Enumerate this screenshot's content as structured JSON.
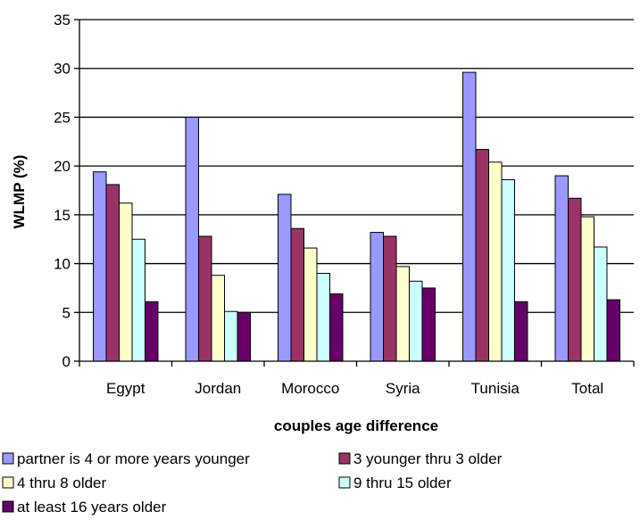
{
  "chart_data": {
    "type": "bar",
    "title": "",
    "xlabel": "couples age difference",
    "ylabel": "WLMP (%)",
    "ylim": [
      0,
      35
    ],
    "yticks": [
      0,
      5,
      10,
      15,
      20,
      25,
      30,
      35
    ],
    "grid": true,
    "legend_position": "bottom",
    "categories": [
      "Egypt",
      "Jordan",
      "Morocco",
      "Syria",
      "Tunisia",
      "Total"
    ],
    "series": [
      {
        "name": "partner is 4 or more years younger",
        "color": "#9999ff",
        "values": [
          19.4,
          25.0,
          17.1,
          13.2,
          29.6,
          19.0
        ]
      },
      {
        "name": "3 younger thru 3 older",
        "color": "#993366",
        "values": [
          18.1,
          12.8,
          13.6,
          12.8,
          21.7,
          16.7
        ]
      },
      {
        "name": "4 thru 8 older",
        "color": "#ffffcc",
        "values": [
          16.2,
          8.8,
          11.6,
          9.7,
          20.4,
          14.8
        ]
      },
      {
        "name": "9 thru 15 older",
        "color": "#ccffff",
        "values": [
          12.5,
          5.1,
          9.0,
          8.2,
          18.6,
          11.7
        ]
      },
      {
        "name": "at least 16 years older",
        "color": "#660066",
        "values": [
          6.1,
          5.0,
          6.9,
          7.5,
          6.1,
          6.3
        ]
      }
    ]
  }
}
